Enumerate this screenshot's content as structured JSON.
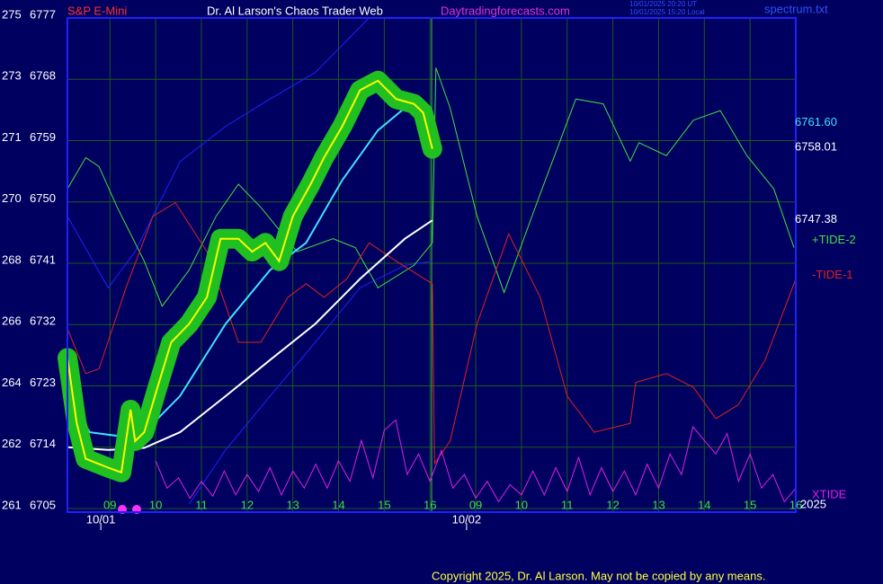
{
  "chart_data": {
    "type": "line",
    "header": {
      "symbol": "S&P E-Mini",
      "title": "Dr. Al Larson's Chaos Trader Web",
      "site": "Daytradingforecasts.com",
      "time_ut": "10/01/2025 20:20 UT",
      "time_local": "10/01/2025 15:20 Local",
      "file": "spectrum.txt"
    },
    "footer": "Copyright 2025, Dr. Al Larson. May not be copied by any means.",
    "xlim": [
      0.07,
      16
    ],
    "xticks": [
      {
        "value": 1,
        "label": "09"
      },
      {
        "value": 2,
        "label": "10"
      },
      {
        "value": 3,
        "label": "11"
      },
      {
        "value": 4,
        "label": "12"
      },
      {
        "value": 5,
        "label": "13"
      },
      {
        "value": 6,
        "label": "14"
      },
      {
        "value": 7,
        "label": "15"
      },
      {
        "value": 8,
        "label": "16"
      },
      {
        "value": 9,
        "label": "09"
      },
      {
        "value": 10,
        "label": "10"
      },
      {
        "value": 11,
        "label": "11"
      },
      {
        "value": 12,
        "label": "12"
      },
      {
        "value": 13,
        "label": "13"
      },
      {
        "value": 14,
        "label": "14"
      },
      {
        "value": 15,
        "label": "15"
      },
      {
        "value": 16,
        "label": "16"
      }
    ],
    "date_labels": [
      {
        "x": 0.8,
        "label": "10/01"
      },
      {
        "x": 8.8,
        "label": "10/02"
      }
    ],
    "ylim": [
      6705,
      6777
    ],
    "yticks": [
      6705,
      6714,
      6723,
      6732,
      6741,
      6750,
      6759,
      6768,
      6777
    ],
    "y_alt_labels": [
      261,
      262,
      264,
      266,
      268,
      270,
      271,
      273,
      275
    ],
    "grid": true,
    "right_labels": [
      {
        "text": "6761.60",
        "color": "#40e0ff",
        "y": 6761.6
      },
      {
        "text": "6758.01",
        "color": "#ffffff",
        "y": 6758.01
      },
      {
        "text": "6747.38",
        "color": "#ffffff",
        "y": 6747.38
      }
    ],
    "year_label": "2025",
    "series": [
      {
        "color": "#2020ff",
        "width": 1,
        "x": [
          0.07,
          0.96,
          1.55,
          2.53,
          3.53,
          4.5,
          5.49,
          6.08,
          6.67
        ],
        "values": [
          6747.9,
          6737.4,
          6742.7,
          6755.9,
          6761.1,
          6765.1,
          6769,
          6773,
          6777
        ]
      },
      {
        "color": "#2020ff",
        "width": 1,
        "x": [
          2.73,
          3.53,
          4.5,
          5.49,
          6.47,
          7.45,
          8.05
        ],
        "values": [
          6705.6,
          6713.6,
          6721.5,
          6729.4,
          6737.4,
          6740.7,
          6741.3
        ]
      },
      {
        "name": "+TIDE-2",
        "color": "#40e040",
        "width": 1,
        "x": [
          0.07,
          0.47,
          0.76,
          1.16,
          1.75,
          2.14,
          2.73,
          3.32,
          3.81,
          4.3,
          5.09,
          5.88,
          6.37,
          6.86,
          7.65,
          8.05,
          8.13,
          8.44,
          9.03,
          9.62,
          10.41,
          11.19,
          11.79,
          12.38,
          12.57,
          13.17,
          13.76,
          14.35,
          14.93,
          15.52,
          15.96
        ],
        "values": [
          6751.9,
          6756.5,
          6755.2,
          6749.2,
          6741.3,
          6734.7,
          6740,
          6747.9,
          6752.6,
          6749.2,
          6742.7,
          6744.6,
          6743.3,
          6737.4,
          6740.7,
          6744,
          6769.7,
          6763.8,
          6747.9,
          6736.7,
          6751.2,
          6765.1,
          6764.4,
          6756,
          6758.7,
          6756.8,
          6762,
          6763.4,
          6756.8,
          6751.9,
          6743.3
        ]
      },
      {
        "name": "-TIDE-1",
        "color": "#e02020",
        "width": 1,
        "x": [
          0.07,
          0.47,
          0.76,
          1.35,
          1.94,
          2.43,
          3.12,
          3.81,
          4.3,
          4.895,
          5.29,
          5.68,
          6.18,
          6.67,
          7.26,
          8.05,
          8.1,
          8.44,
          9.03,
          9.72,
          10.41,
          11.0,
          11.59,
          12.38,
          12.5,
          13.17,
          13.76,
          14.25,
          14.74,
          15.33,
          16.0
        ],
        "values": [
          6731.4,
          6724.8,
          6725.5,
          6737.4,
          6747.9,
          6749.9,
          6742.7,
          6729.4,
          6729.4,
          6736,
          6738,
          6736,
          6738.7,
          6744,
          6741.3,
          6738,
          6711.6,
          6714.9,
          6732.1,
          6745.3,
          6736,
          6721.5,
          6716.2,
          6717.5,
          6723.5,
          6724.8,
          6722.8,
          6718.2,
          6720.2,
          6726.8,
          6738.7
        ]
      },
      {
        "name": "XTIDE",
        "color": "#e020e0",
        "width": 1,
        "x": [
          2,
          2.25,
          2.5,
          2.75,
          3,
          3.25,
          3.5,
          3.75,
          4,
          4.25,
          4.5,
          4.75,
          5,
          5.25,
          5.5,
          5.75,
          6,
          6.25,
          6.5,
          6.75,
          7,
          7.25,
          7.5,
          7.75,
          8,
          8.25,
          8.5,
          8.75,
          9,
          9.25,
          9.5,
          9.75,
          10,
          10.25,
          10.5,
          10.75,
          11,
          11.25,
          11.5,
          11.75,
          12,
          12.25,
          12.5,
          12.75,
          13,
          13.25,
          13.5,
          13.75,
          14,
          14.25,
          14.5,
          14.75,
          15,
          15.25,
          15.5,
          15.75,
          16
        ],
        "values": [
          6712,
          6708,
          6709.5,
          6706.5,
          6709,
          6706.8,
          6710.5,
          6707,
          6710,
          6707.5,
          6711,
          6707,
          6710.5,
          6708,
          6711.5,
          6708,
          6712,
          6709,
          6715,
          6709.5,
          6716.5,
          6718,
          6710,
          6713,
          6709,
          6713.5,
          6708,
          6710,
          6706.5,
          6709,
          6706,
          6708.5,
          6707,
          6710.5,
          6707,
          6711,
          6707.5,
          6712.5,
          6707,
          6711,
          6707.5,
          6710.5,
          6707,
          6711.5,
          6708,
          6713,
          6710,
          6717,
          6715,
          6713,
          6716,
          6709,
          6713,
          6708,
          6710,
          6706,
          6708
        ]
      },
      {
        "color": "#ffffff",
        "width": 2,
        "x": [
          0.07,
          0.96,
          1.75,
          2.53,
          3.53,
          4.5,
          5.49,
          6.47,
          7.45,
          8.05
        ],
        "values": [
          6714,
          6713.6,
          6713.9,
          6716.2,
          6721.5,
          6726.8,
          6732.1,
          6738.7,
          6744.6,
          6747.3
        ]
      },
      {
        "color": "#40e0ff",
        "width": 2,
        "x": [
          0.07,
          0.56,
          1.35,
          1.75,
          2.53,
          3.53,
          4.5,
          5.29,
          6.08,
          6.86,
          7.45,
          8.05
        ],
        "values": [
          6721.5,
          6716.2,
          6715.5,
          6716.2,
          6721.5,
          6732.1,
          6740,
          6744,
          6753.2,
          6760.5,
          6763.8,
          6761.8
        ]
      },
      {
        "color": "#ffff00",
        "width": 2,
        "glow": "#20c020",
        "x": [
          0.07,
          0.27,
          0.47,
          0.96,
          1.25,
          1.45,
          1.55,
          1.75,
          2.04,
          2.34,
          2.73,
          3.12,
          3.42,
          3.81,
          4.11,
          4.4,
          4.7,
          5.0,
          5.39,
          5.68,
          6.08,
          6.47,
          6.86,
          7.26,
          7.65,
          7.85,
          8.05
        ],
        "values": [
          6727.1,
          6717.6,
          6712.3,
          6711,
          6710.3,
          6719.5,
          6714.9,
          6716.2,
          6722.8,
          6729.4,
          6732.1,
          6736,
          6744.6,
          6744.6,
          6742.7,
          6744,
          6741.3,
          6747.9,
          6752.6,
          6756.5,
          6761.1,
          6766.4,
          6767.8,
          6765.1,
          6764.4,
          6763.1,
          6757.8
        ]
      }
    ]
  }
}
